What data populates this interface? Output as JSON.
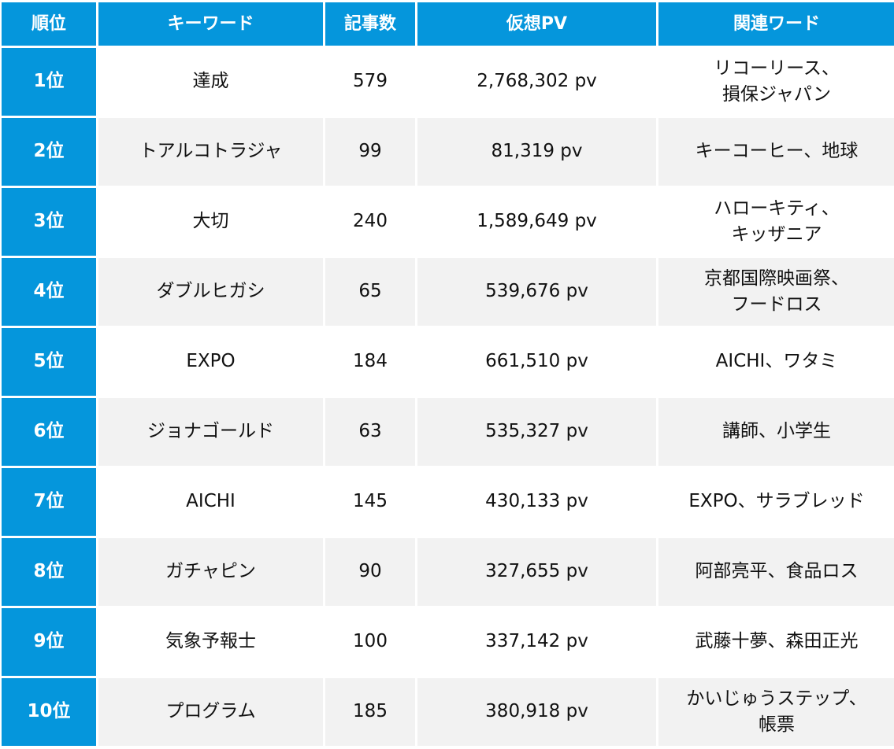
{
  "table": {
    "headers": [
      "順位",
      "キーワード",
      "記事数",
      "仮想PV",
      "関連ワード"
    ],
    "rows": [
      {
        "rank": "1位",
        "keyword": "達成",
        "articles": "579",
        "pv": "2,768,302 pv",
        "related": "リコーリース、\n損保ジャパン"
      },
      {
        "rank": "2位",
        "keyword": "トアルコトラジャ",
        "articles": "99",
        "pv": "81,319 pv",
        "related": "キーコーヒー、地球"
      },
      {
        "rank": "3位",
        "keyword": "大切",
        "articles": "240",
        "pv": "1,589,649 pv",
        "related": "ハローキティ、\nキッザニア"
      },
      {
        "rank": "4位",
        "keyword": "ダブルヒガシ",
        "articles": "65",
        "pv": "539,676 pv",
        "related": "京都国際映画祭、\nフードロス"
      },
      {
        "rank": "5位",
        "keyword": "EXPO",
        "articles": "184",
        "pv": "661,510 pv",
        "related": "AICHI、ワタミ"
      },
      {
        "rank": "6位",
        "keyword": "ジョナゴールド",
        "articles": "63",
        "pv": "535,327 pv",
        "related": "講師、小学生"
      },
      {
        "rank": "7位",
        "keyword": "AICHI",
        "articles": "145",
        "pv": "430,133 pv",
        "related": "EXPO、サラブレッド"
      },
      {
        "rank": "8位",
        "keyword": "ガチャピン",
        "articles": "90",
        "pv": "327,655 pv",
        "related": "阿部亮平、食品ロス"
      },
      {
        "rank": "9位",
        "keyword": "気象予報士",
        "articles": "100",
        "pv": "337,142 pv",
        "related": "武藤十夢、森田正光"
      },
      {
        "rank": "10位",
        "keyword": "プログラム",
        "articles": "185",
        "pv": "380,918 pv",
        "related": "かいじゅうステップ、\n帳票"
      }
    ]
  },
  "colors": {
    "header_bg": "#0596dc",
    "header_text": "#ffffff",
    "row_alt_bg": "#f2f2f2",
    "row_bg": "#ffffff"
  }
}
